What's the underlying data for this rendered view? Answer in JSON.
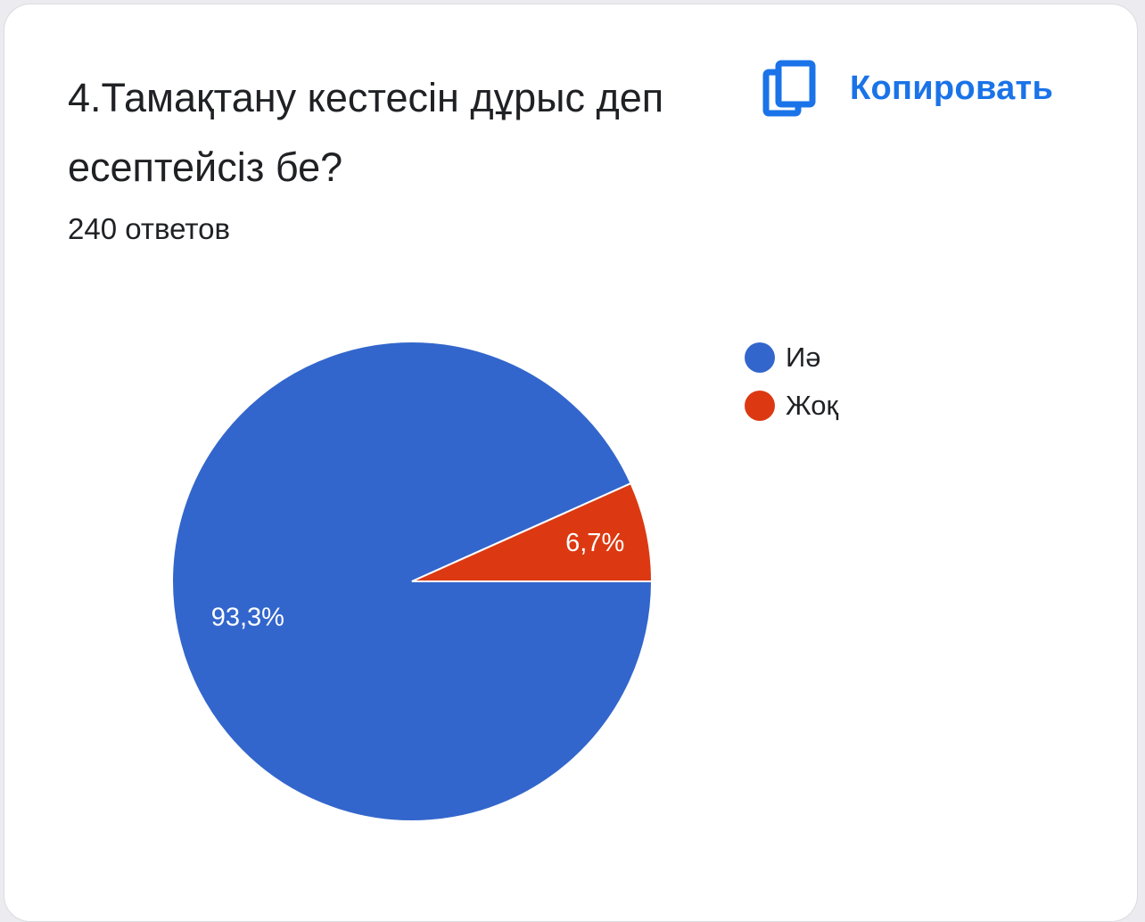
{
  "question": {
    "title": "4.Тамақтану кестесін дұрыс деп есептейсіз бе?",
    "response_count": "240 ответов"
  },
  "copy_button": {
    "label": "Копировать",
    "icon": "copy-icon"
  },
  "colors": {
    "accent": "#1a73e8",
    "series_1": "#3366cc",
    "series_2": "#dc3912"
  },
  "chart_data": {
    "type": "pie",
    "categories": [
      "Иә",
      "Жоқ"
    ],
    "values": [
      93.3,
      6.7
    ],
    "value_labels": [
      "93,3%",
      "6,7%"
    ],
    "colors": [
      "#3366cc",
      "#dc3912"
    ],
    "legend_position": "top-right"
  }
}
